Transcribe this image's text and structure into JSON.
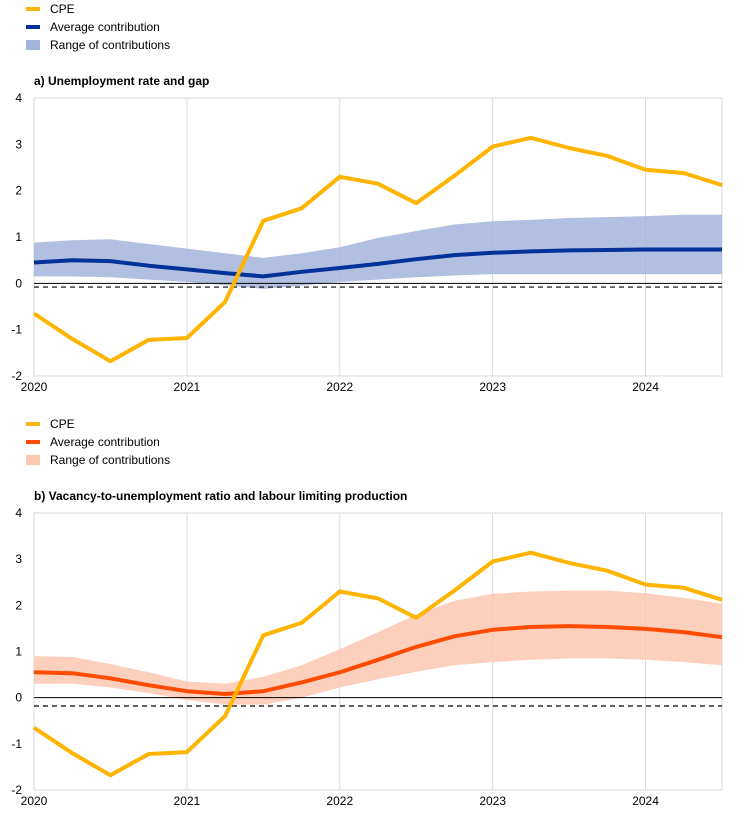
{
  "chart_data": [
    {
      "type": "line",
      "title": "a) Unemployment rate and gap",
      "x_ticks": [
        "2020",
        "2021",
        "2022",
        "2023",
        "2024"
      ],
      "ylim": [
        -2,
        4
      ],
      "y_ticks": [
        "4",
        "3",
        "2",
        "1",
        "0",
        "-1",
        "-2"
      ],
      "grid": "vertical",
      "legend_position": "top-left",
      "legend": [
        "CPE",
        "Average contribution",
        "Range of contributions"
      ],
      "x": [
        2020.0,
        2020.25,
        2020.5,
        2020.75,
        2021.0,
        2021.25,
        2021.5,
        2021.75,
        2022.0,
        2022.25,
        2022.5,
        2022.75,
        2023.0,
        2023.25,
        2023.5,
        2023.75,
        2024.0,
        2024.25,
        2024.5
      ],
      "series": [
        {
          "name": "CPE",
          "type": "line",
          "color": "#FFB400",
          "values": [
            -0.65,
            -1.2,
            -1.68,
            -1.22,
            -1.18,
            -0.4,
            1.35,
            1.62,
            2.3,
            2.15,
            1.73,
            2.32,
            2.95,
            3.14,
            2.92,
            2.75,
            2.45,
            2.38,
            2.12
          ]
        },
        {
          "name": "Average contribution",
          "type": "line",
          "color": "#003299",
          "values": [
            0.45,
            0.5,
            0.48,
            0.38,
            0.3,
            0.22,
            0.15,
            0.25,
            0.33,
            0.42,
            0.52,
            0.61,
            0.66,
            0.69,
            0.71,
            0.72,
            0.73,
            0.73,
            0.73
          ]
        },
        {
          "name": "Range of contributions",
          "type": "band",
          "color": "#A3B4DC",
          "lower": [
            0.15,
            0.15,
            0.13,
            0.08,
            0.03,
            -0.04,
            -0.12,
            -0.05,
            0.03,
            0.08,
            0.13,
            0.17,
            0.2,
            0.2,
            0.2,
            0.2,
            0.2,
            0.2,
            0.2
          ],
          "upper": [
            0.88,
            0.93,
            0.95,
            0.85,
            0.75,
            0.65,
            0.55,
            0.65,
            0.78,
            0.98,
            1.13,
            1.27,
            1.34,
            1.37,
            1.41,
            1.43,
            1.45,
            1.48,
            1.48
          ]
        }
      ],
      "reference_line": {
        "style": "dashed",
        "value": -0.08
      }
    },
    {
      "type": "line",
      "title": "b) Vacancy-to-unemployment ratio and labour limiting production",
      "x_ticks": [
        "2020",
        "2021",
        "2022",
        "2023",
        "2024"
      ],
      "ylim": [
        -2,
        4
      ],
      "y_ticks": [
        "4",
        "3",
        "2",
        "1",
        "0",
        "-1",
        "-2"
      ],
      "grid": "vertical",
      "legend_position": "top-left",
      "legend": [
        "CPE",
        "Average contribution",
        "Range of contributions"
      ],
      "x": [
        2020.0,
        2020.25,
        2020.5,
        2020.75,
        2021.0,
        2021.25,
        2021.5,
        2021.75,
        2022.0,
        2022.25,
        2022.5,
        2022.75,
        2023.0,
        2023.25,
        2023.5,
        2023.75,
        2024.0,
        2024.25,
        2024.5
      ],
      "series": [
        {
          "name": "CPE",
          "type": "line",
          "color": "#FFB400",
          "values": [
            -0.65,
            -1.2,
            -1.68,
            -1.22,
            -1.18,
            -0.4,
            1.35,
            1.62,
            2.3,
            2.15,
            1.73,
            2.32,
            2.95,
            3.14,
            2.92,
            2.75,
            2.45,
            2.38,
            2.12
          ]
        },
        {
          "name": "Average contribution",
          "type": "line",
          "color": "#FF4B00",
          "values": [
            0.55,
            0.53,
            0.42,
            0.27,
            0.14,
            0.08,
            0.14,
            0.33,
            0.55,
            0.82,
            1.1,
            1.33,
            1.47,
            1.53,
            1.55,
            1.53,
            1.49,
            1.42,
            1.31
          ]
        },
        {
          "name": "Range of contributions",
          "type": "band",
          "color": "#FCC8B0",
          "lower": [
            0.3,
            0.3,
            0.22,
            0.1,
            -0.05,
            -0.15,
            -0.15,
            0.0,
            0.22,
            0.4,
            0.56,
            0.7,
            0.77,
            0.82,
            0.85,
            0.85,
            0.82,
            0.77,
            0.7
          ],
          "upper": [
            0.9,
            0.88,
            0.73,
            0.55,
            0.35,
            0.3,
            0.45,
            0.7,
            1.05,
            1.42,
            1.8,
            2.1,
            2.25,
            2.3,
            2.32,
            2.32,
            2.26,
            2.16,
            2.03
          ]
        }
      ],
      "reference_line": {
        "style": "dashed",
        "value": -0.18
      }
    }
  ]
}
